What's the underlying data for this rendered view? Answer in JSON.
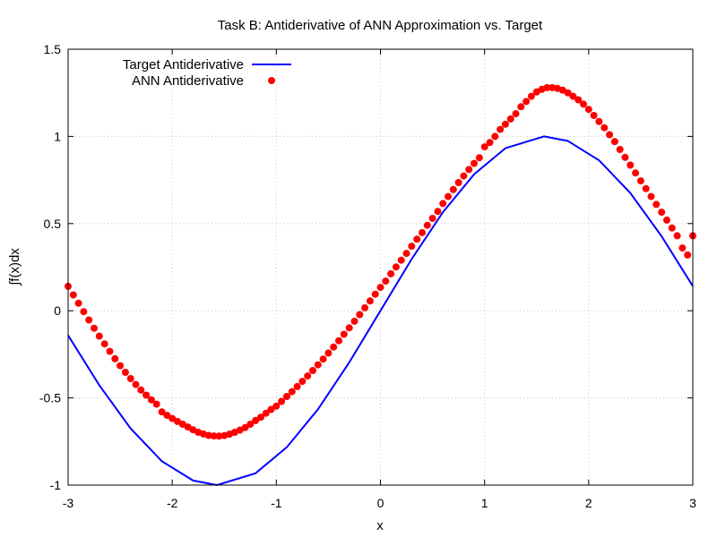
{
  "chart_data": {
    "type": "line",
    "title": "Task B: Antiderivative of ANN Approximation vs. Target",
    "xlabel": "x",
    "ylabel": "∫f(x)dx",
    "xlim": [
      -3,
      3
    ],
    "ylim": [
      -1,
      1.5
    ],
    "xticks": [
      "-3",
      "-2",
      "-1",
      "0",
      "1",
      "2",
      "3"
    ],
    "yticks": [
      "-1",
      "-0.5",
      "0",
      "0.5",
      "1",
      "1.5"
    ],
    "grid": true,
    "legend_position": "top-left",
    "series": [
      {
        "name": "Target Antiderivative",
        "style": "line",
        "color": "#0000ff",
        "x": [
          -3.0,
          -2.7,
          -2.4,
          -2.1,
          -1.8,
          -1.5708,
          -1.2,
          -0.9,
          -0.6,
          -0.3,
          0.0,
          0.3,
          0.6,
          0.9,
          1.2,
          1.5708,
          1.8,
          2.1,
          2.4,
          2.7,
          3.0
        ],
        "y": [
          -0.141,
          -0.427,
          -0.675,
          -0.863,
          -0.974,
          -1.0,
          -0.932,
          -0.783,
          -0.565,
          -0.296,
          0.0,
          0.296,
          0.565,
          0.783,
          0.932,
          1.0,
          0.974,
          0.863,
          0.675,
          0.427,
          0.141
        ]
      },
      {
        "name": "ANN Antiderivative",
        "style": "points",
        "color": "#ff0000",
        "x": [
          -3.0,
          -2.95,
          -2.9,
          -2.85,
          -2.8,
          -2.75,
          -2.7,
          -2.65,
          -2.6,
          -2.55,
          -2.5,
          -2.45,
          -2.4,
          -2.35,
          -2.3,
          -2.25,
          -2.2,
          -2.15,
          -2.1,
          -2.05,
          -2.0,
          -1.95,
          -1.9,
          -1.85,
          -1.8,
          -1.75,
          -1.7,
          -1.65,
          -1.6,
          -1.55,
          -1.5,
          -1.45,
          -1.4,
          -1.35,
          -1.3,
          -1.25,
          -1.2,
          -1.15,
          -1.1,
          -1.05,
          -1.0,
          -0.95,
          -0.9,
          -0.85,
          -0.8,
          -0.75,
          -0.7,
          -0.65,
          -0.6,
          -0.55,
          -0.5,
          -0.45,
          -0.4,
          -0.35,
          -0.3,
          -0.25,
          -0.2,
          -0.15,
          -0.1,
          -0.05,
          0.0,
          0.05,
          0.1,
          0.15,
          0.2,
          0.25,
          0.3,
          0.35,
          0.4,
          0.45,
          0.5,
          0.55,
          0.6,
          0.65,
          0.7,
          0.75,
          0.8,
          0.85,
          0.9,
          0.95,
          1.0,
          1.05,
          1.1,
          1.15,
          1.2,
          1.25,
          1.3,
          1.35,
          1.4,
          1.45,
          1.5,
          1.55,
          1.6,
          1.65,
          1.7,
          1.75,
          1.8,
          1.85,
          1.9,
          1.95,
          2.0,
          2.05,
          2.1,
          2.15,
          2.2,
          2.25,
          2.3,
          2.35,
          2.4,
          2.45,
          2.5,
          2.55,
          2.6,
          2.65,
          2.7,
          2.75,
          2.8,
          2.85,
          2.9,
          2.95,
          3.0
        ],
        "y": [
          0.14,
          0.091,
          0.043,
          -0.005,
          -0.053,
          -0.1,
          -0.146,
          -0.19,
          -0.233,
          -0.275,
          -0.315,
          -0.353,
          -0.389,
          -0.423,
          -0.455,
          -0.484,
          -0.511,
          -0.536,
          -0.58,
          -0.6,
          -0.618,
          -0.635,
          -0.651,
          -0.667,
          -0.683,
          -0.697,
          -0.707,
          -0.715,
          -0.718,
          -0.719,
          -0.716,
          -0.708,
          -0.697,
          -0.685,
          -0.67,
          -0.651,
          -0.63,
          -0.611,
          -0.588,
          -0.566,
          -0.547,
          -0.52,
          -0.492,
          -0.464,
          -0.435,
          -0.405,
          -0.374,
          -0.343,
          -0.31,
          -0.277,
          -0.243,
          -0.208,
          -0.172,
          -0.135,
          -0.098,
          -0.06,
          -0.022,
          0.017,
          0.056,
          0.095,
          0.134,
          0.17,
          0.212,
          0.251,
          0.29,
          0.329,
          0.37,
          0.41,
          0.448,
          0.49,
          0.53,
          0.57,
          0.615,
          0.655,
          0.695,
          0.735,
          0.773,
          0.81,
          0.845,
          0.878,
          0.94,
          0.965,
          1.0,
          1.04,
          1.07,
          1.1,
          1.13,
          1.17,
          1.2,
          1.23,
          1.255,
          1.27,
          1.28,
          1.28,
          1.275,
          1.265,
          1.25,
          1.23,
          1.21,
          1.185,
          1.155,
          1.12,
          1.085,
          1.05,
          1.01,
          0.97,
          0.925,
          0.88,
          0.835,
          0.79,
          0.745,
          0.7,
          0.655,
          0.61,
          0.565,
          0.52,
          0.475,
          0.43,
          0.36,
          0.32,
          0.43
        ]
      }
    ]
  }
}
